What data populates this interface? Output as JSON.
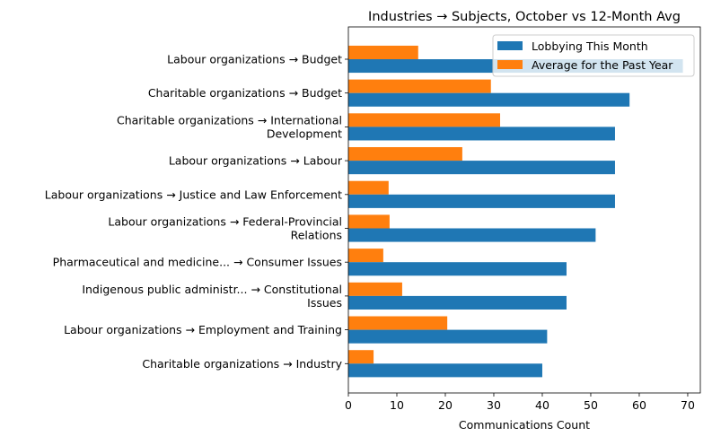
{
  "chart_data": {
    "type": "bar",
    "orientation": "horizontal",
    "title": "Industries → Subjects, October vs 12-Month Avg",
    "xlabel": "Communications Count",
    "ylabel": "",
    "xlim": [
      0,
      72.6
    ],
    "xticks": [
      0,
      10,
      20,
      30,
      40,
      50,
      60,
      70
    ],
    "grid": false,
    "legend_position": "top-right",
    "categories": [
      [
        "Labour organizations → Budget"
      ],
      [
        "Charitable organizations → Budget"
      ],
      [
        "Charitable organizations → International",
        "Development"
      ],
      [
        "Labour organizations → Labour"
      ],
      [
        "Labour organizations → Justice and Law Enforcement"
      ],
      [
        "Labour organizations → Federal-Provincial",
        "Relations"
      ],
      [
        "Pharmaceutical and medicine... → Consumer Issues"
      ],
      [
        "Indigenous public administr... → Constitutional",
        "Issues"
      ],
      [
        "Labour organizations → Employment and Training"
      ],
      [
        "Charitable organizations → Industry"
      ]
    ],
    "series": [
      {
        "name": "Lobbying This Month",
        "color": "#1f77b4",
        "values": [
          69,
          58,
          55,
          55,
          55,
          51,
          45,
          45,
          41,
          40
        ]
      },
      {
        "name": "Average for the Past Year",
        "color": "#ff7f0e",
        "values": [
          14.4,
          29.4,
          31.3,
          23.5,
          8.3,
          8.5,
          7.2,
          11.1,
          20.4,
          5.2
        ]
      }
    ]
  }
}
